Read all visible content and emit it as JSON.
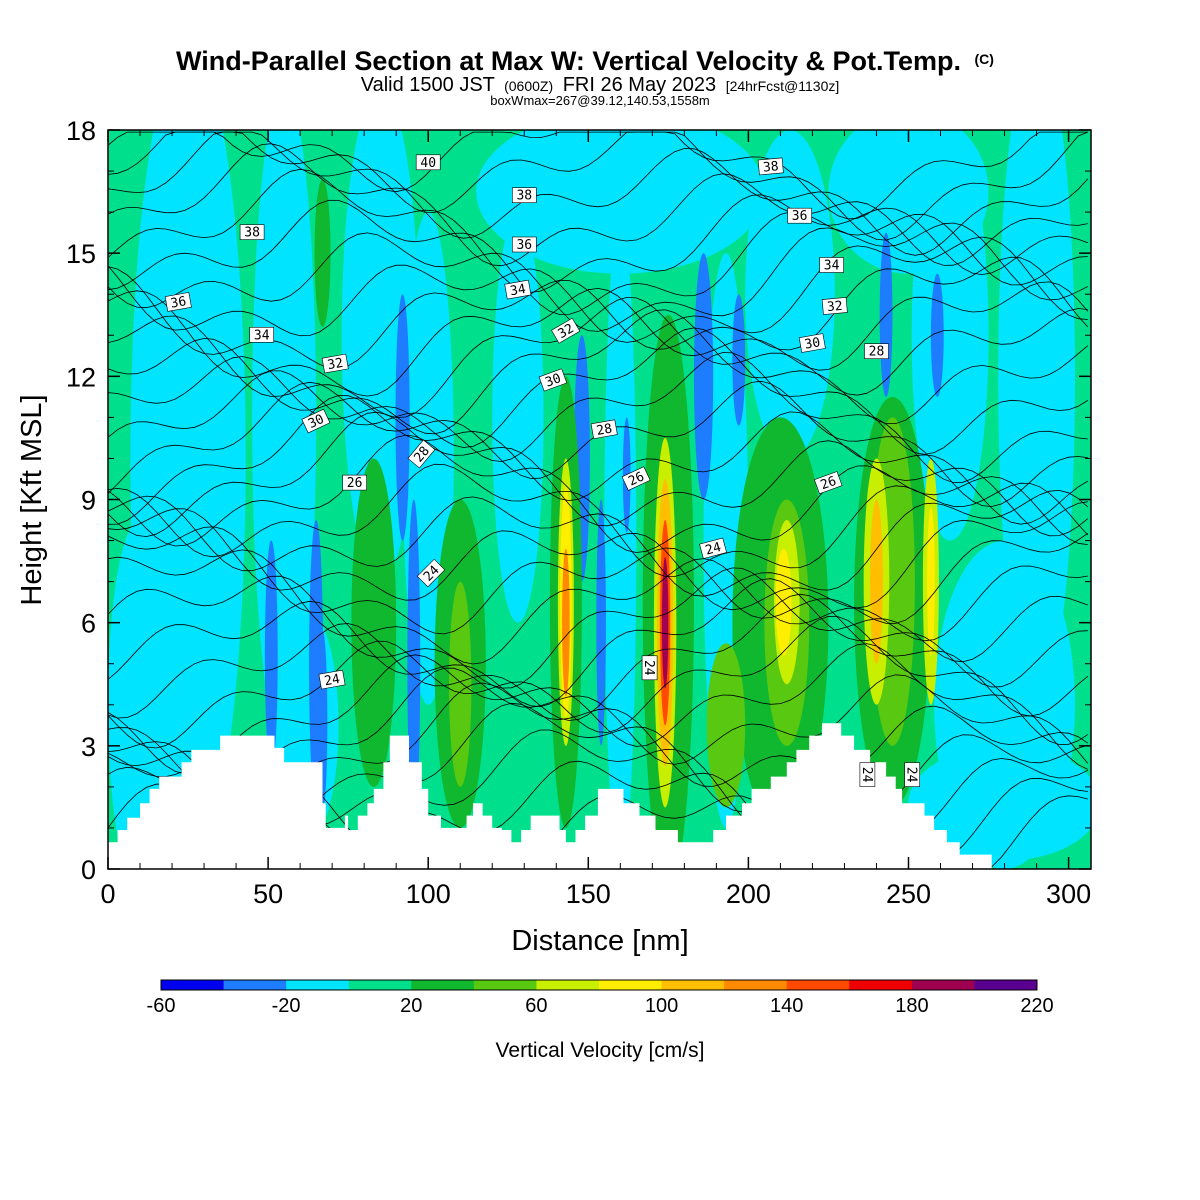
{
  "chart_data": {
    "type": "heatmap",
    "title": "Wind-Parallel Section at Max W: Vertical Velocity & Pot.Temp.",
    "title_mark": "(C)",
    "subtitle": {
      "main1": "Valid 1500 JST",
      "small1": "(0600Z)",
      "main2": "FRI 26 May 2023",
      "small2": "[24hrFcst@1130z]"
    },
    "subtitle2": "boxWmax=267@39.12,140.53,1558m",
    "xlabel": "Distance [nm]",
    "ylabel": "Height [Kft MSL]",
    "xlim": [
      0,
      307
    ],
    "ylim": [
      0,
      18
    ],
    "xticks": [
      0,
      50,
      100,
      150,
      200,
      250,
      300
    ],
    "yticks": [
      0,
      3,
      6,
      9,
      12,
      15,
      18
    ],
    "colorbar": {
      "title": "Vertical Velocity [cm/s]",
      "min": -60,
      "step": 20,
      "tick_labels": [
        "-60",
        "-20",
        "20",
        "60",
        "100",
        "140",
        "180",
        "220"
      ],
      "colors": [
        "#0000ee",
        "#1e7cff",
        "#00e4ff",
        "#00e08c",
        "#10b830",
        "#58c810",
        "#c8ee00",
        "#ffee00",
        "#ffbe00",
        "#ff8a00",
        "#ff4a00",
        "#ee0000",
        "#a00050",
        "#5a0090"
      ]
    },
    "background_color": "#00e08c",
    "terrain": [
      [
        0,
        0.65
      ],
      [
        3,
        0.65
      ],
      [
        3,
        0.95
      ],
      [
        6,
        0.95
      ],
      [
        6,
        1.25
      ],
      [
        10,
        1.25
      ],
      [
        10,
        1.6
      ],
      [
        13,
        1.6
      ],
      [
        13,
        1.95
      ],
      [
        16,
        1.95
      ],
      [
        16,
        2.25
      ],
      [
        23,
        2.25
      ],
      [
        23,
        2.6
      ],
      [
        26,
        2.6
      ],
      [
        26,
        2.9
      ],
      [
        35,
        2.9
      ],
      [
        35,
        3.25
      ],
      [
        52,
        3.25
      ],
      [
        52,
        2.95
      ],
      [
        55,
        2.95
      ],
      [
        55,
        2.6
      ],
      [
        67,
        2.6
      ],
      [
        67,
        1.6
      ],
      [
        68,
        1.6
      ],
      [
        68,
        1.0
      ],
      [
        74,
        1.0
      ],
      [
        74,
        1.3
      ],
      [
        75,
        1.3
      ],
      [
        75,
        0.95
      ],
      [
        78,
        0.95
      ],
      [
        78,
        1.3
      ],
      [
        81,
        1.3
      ],
      [
        81,
        1.6
      ],
      [
        83,
        1.6
      ],
      [
        83,
        1.95
      ],
      [
        86,
        1.95
      ],
      [
        86,
        2.6
      ],
      [
        88,
        2.6
      ],
      [
        88,
        3.25
      ],
      [
        94,
        3.25
      ],
      [
        94,
        2.6
      ],
      [
        98,
        2.6
      ],
      [
        98,
        1.95
      ],
      [
        100,
        1.95
      ],
      [
        100,
        1.3
      ],
      [
        104,
        1.3
      ],
      [
        104,
        1.0
      ],
      [
        112,
        1.0
      ],
      [
        112,
        1.3
      ],
      [
        114,
        1.3
      ],
      [
        114,
        1.6
      ],
      [
        117,
        1.6
      ],
      [
        117,
        1.3
      ],
      [
        120,
        1.3
      ],
      [
        120,
        1.0
      ],
      [
        123,
        1.0
      ],
      [
        123,
        0.95
      ],
      [
        126,
        0.95
      ],
      [
        126,
        0.65
      ],
      [
        129,
        0.65
      ],
      [
        129,
        0.95
      ],
      [
        132,
        0.95
      ],
      [
        132,
        1.3
      ],
      [
        141,
        1.3
      ],
      [
        141,
        0.95
      ],
      [
        143,
        0.95
      ],
      [
        143,
        0.65
      ],
      [
        146,
        0.65
      ],
      [
        146,
        0.95
      ],
      [
        149,
        0.95
      ],
      [
        149,
        1.3
      ],
      [
        153,
        1.3
      ],
      [
        153,
        1.95
      ],
      [
        161,
        1.95
      ],
      [
        161,
        1.6
      ],
      [
        166,
        1.6
      ],
      [
        166,
        1.3
      ],
      [
        171,
        1.3
      ],
      [
        171,
        0.95
      ],
      [
        178,
        0.95
      ],
      [
        178,
        0.65
      ],
      [
        189,
        0.65
      ],
      [
        189,
        0.95
      ],
      [
        193,
        0.95
      ],
      [
        193,
        1.3
      ],
      [
        198,
        1.3
      ],
      [
        198,
        1.6
      ],
      [
        201,
        1.6
      ],
      [
        201,
        1.95
      ],
      [
        207,
        1.95
      ],
      [
        207,
        2.25
      ],
      [
        212,
        2.25
      ],
      [
        212,
        2.6
      ],
      [
        215,
        2.6
      ],
      [
        215,
        2.9
      ],
      [
        219,
        2.9
      ],
      [
        219,
        3.25
      ],
      [
        223,
        3.25
      ],
      [
        223,
        3.55
      ],
      [
        229,
        3.55
      ],
      [
        229,
        3.25
      ],
      [
        233,
        3.25
      ],
      [
        233,
        2.9
      ],
      [
        238,
        2.9
      ],
      [
        238,
        2.6
      ],
      [
        243,
        2.6
      ],
      [
        243,
        2.25
      ],
      [
        246,
        2.25
      ],
      [
        246,
        1.95
      ],
      [
        248,
        1.95
      ],
      [
        248,
        1.6
      ],
      [
        255,
        1.6
      ],
      [
        255,
        1.3
      ],
      [
        258,
        1.3
      ],
      [
        258,
        0.95
      ],
      [
        262,
        0.95
      ],
      [
        262,
        0.65
      ],
      [
        266,
        0.65
      ],
      [
        266,
        0.35
      ],
      [
        276,
        0.35
      ],
      [
        276,
        0.0
      ],
      [
        307,
        0.0
      ]
    ],
    "velocity_features": [
      {
        "w": -5,
        "cx": 25,
        "cy": 10,
        "rx": 18,
        "ry": 10
      },
      {
        "w": -5,
        "cx": 10,
        "cy": 4,
        "rx": 10,
        "ry": 4.5
      },
      {
        "w": -5,
        "cx": 55,
        "cy": 11,
        "rx": 10,
        "ry": 8
      },
      {
        "w": -5,
        "cx": 62,
        "cy": 3.5,
        "rx": 10,
        "ry": 2.8
      },
      {
        "w": -5,
        "cx": 85,
        "cy": 13,
        "rx": 12,
        "ry": 6
      },
      {
        "w": -5,
        "cx": 100,
        "cy": 10,
        "rx": 8,
        "ry": 6
      },
      {
        "w": -5,
        "cx": 128,
        "cy": 11,
        "rx": 8,
        "ry": 5
      },
      {
        "w": -5,
        "cx": 160,
        "cy": 8,
        "rx": 5,
        "ry": 8
      },
      {
        "w": -5,
        "cx": 193,
        "cy": 8,
        "rx": 7,
        "ry": 7
      },
      {
        "w": -5,
        "cx": 213,
        "cy": 14,
        "rx": 14,
        "ry": 4
      },
      {
        "w": -5,
        "cx": 263,
        "cy": 13,
        "rx": 12,
        "ry": 5
      },
      {
        "w": -5,
        "cx": 280,
        "cy": 4,
        "rx": 22,
        "ry": 4
      },
      {
        "w": -5,
        "cx": 290,
        "cy": 12,
        "rx": 12,
        "ry": 8
      },
      {
        "w": -5,
        "cx": 160,
        "cy": 16.5,
        "rx": 45,
        "ry": 2
      },
      {
        "w": -5,
        "cx": 250,
        "cy": 16.5,
        "rx": 25,
        "ry": 2
      },
      {
        "w": -5,
        "cx": 280,
        "cy": 1.6,
        "rx": 30,
        "ry": 1.4
      },
      {
        "w": -25,
        "cx": 92,
        "cy": 11,
        "rx": 2.2,
        "ry": 3
      },
      {
        "w": -25,
        "cx": 95.5,
        "cy": 5,
        "rx": 2,
        "ry": 4
      },
      {
        "w": -35,
        "cx": 95.5,
        "cy": 4,
        "rx": 1.1,
        "ry": 2.2
      },
      {
        "w": -25,
        "cx": 65,
        "cy": 5,
        "rx": 2.2,
        "ry": 3.5
      },
      {
        "w": -40,
        "cx": 67,
        "cy": 3.6,
        "rx": 1.5,
        "ry": 2.2
      },
      {
        "w": -25,
        "cx": 51,
        "cy": 5.2,
        "rx": 2,
        "ry": 2.8
      },
      {
        "w": -25,
        "cx": 148,
        "cy": 10,
        "rx": 2.5,
        "ry": 3
      },
      {
        "w": -25,
        "cx": 154,
        "cy": 6,
        "rx": 1.5,
        "ry": 3
      },
      {
        "w": -25,
        "cx": 162,
        "cy": 9.6,
        "rx": 1.2,
        "ry": 1.4
      },
      {
        "w": -25,
        "cx": 186,
        "cy": 12,
        "rx": 3,
        "ry": 3
      },
      {
        "w": -25,
        "cx": 197,
        "cy": 12.4,
        "rx": 2,
        "ry": 1.6
      },
      {
        "w": -25,
        "cx": 243,
        "cy": 13.5,
        "rx": 2,
        "ry": 2
      },
      {
        "w": -25,
        "cx": 259,
        "cy": 13,
        "rx": 2,
        "ry": 1.5
      },
      {
        "w": 25,
        "cx": 67,
        "cy": 15,
        "rx": 2.5,
        "ry": 1.8
      },
      {
        "w": 25,
        "cx": 83,
        "cy": 6,
        "rx": 7,
        "ry": 4
      },
      {
        "w": 25,
        "cx": 110,
        "cy": 5,
        "rx": 8,
        "ry": 4
      },
      {
        "w": 25,
        "cx": 143,
        "cy": 6.5,
        "rx": 5,
        "ry": 5.5
      },
      {
        "w": 25,
        "cx": 175,
        "cy": 6.5,
        "rx": 8,
        "ry": 7
      },
      {
        "w": 25,
        "cx": 210,
        "cy": 6,
        "rx": 15,
        "ry": 5
      },
      {
        "w": 25,
        "cx": 245,
        "cy": 6.5,
        "rx": 12,
        "ry": 5
      },
      {
        "w": 50,
        "cx": 110,
        "cy": 4.5,
        "rx": 3.5,
        "ry": 2.5
      },
      {
        "w": 50,
        "cx": 212,
        "cy": 6,
        "rx": 7,
        "ry": 3
      },
      {
        "w": 50,
        "cx": 245,
        "cy": 7,
        "rx": 7,
        "ry": 4
      },
      {
        "w": 50,
        "cx": 193,
        "cy": 3.5,
        "rx": 6,
        "ry": 2
      },
      {
        "w": 70,
        "cx": 143,
        "cy": 6.5,
        "rx": 2.5,
        "ry": 3.5
      },
      {
        "w": 90,
        "cx": 143,
        "cy": 6.5,
        "rx": 1.8,
        "ry": 2.8
      },
      {
        "w": 130,
        "cx": 143,
        "cy": 6,
        "rx": 1.2,
        "ry": 1.8
      },
      {
        "w": 70,
        "cx": 174,
        "cy": 6,
        "rx": 3.5,
        "ry": 4.5
      },
      {
        "w": 110,
        "cx": 174,
        "cy": 6,
        "rx": 2.5,
        "ry": 3.5
      },
      {
        "w": 150,
        "cx": 174,
        "cy": 6,
        "rx": 1.6,
        "ry": 2.5
      },
      {
        "w": 190,
        "cx": 174,
        "cy": 6,
        "rx": 1,
        "ry": 1.6
      },
      {
        "w": 70,
        "cx": 212,
        "cy": 6.5,
        "rx": 4,
        "ry": 2
      },
      {
        "w": 90,
        "cx": 211,
        "cy": 6.5,
        "rx": 2.5,
        "ry": 1.3
      },
      {
        "w": 70,
        "cx": 240,
        "cy": 7,
        "rx": 4,
        "ry": 3
      },
      {
        "w": 100,
        "cx": 240,
        "cy": 7,
        "rx": 2,
        "ry": 2
      },
      {
        "w": 70,
        "cx": 257,
        "cy": 7,
        "rx": 2.5,
        "ry": 3
      },
      {
        "w": 90,
        "cx": 257,
        "cy": 7,
        "rx": 1.2,
        "ry": 1.8
      }
    ],
    "theta_contour_labels": [
      {
        "text": "40",
        "x": 100,
        "y": 17.2,
        "rot": 0
      },
      {
        "text": "38",
        "x": 130,
        "y": 16.4,
        "rot": 0
      },
      {
        "text": "36",
        "x": 130,
        "y": 15.2,
        "rot": 0
      },
      {
        "text": "34",
        "x": 128,
        "y": 14.1,
        "rot": -10
      },
      {
        "text": "32",
        "x": 143,
        "y": 13.1,
        "rot": -30
      },
      {
        "text": "30",
        "x": 139,
        "y": 11.9,
        "rot": -20
      },
      {
        "text": "28",
        "x": 155,
        "y": 10.7,
        "rot": -10
      },
      {
        "text": "26",
        "x": 165,
        "y": 9.5,
        "rot": -25
      },
      {
        "text": "24",
        "x": 189,
        "y": 7.8,
        "rot": -15
      },
      {
        "text": "24",
        "x": 169,
        "y": 4.9,
        "rot": 90
      },
      {
        "text": "38",
        "x": 45,
        "y": 15.5,
        "rot": 0
      },
      {
        "text": "36",
        "x": 22,
        "y": 13.8,
        "rot": -10
      },
      {
        "text": "34",
        "x": 48,
        "y": 13,
        "rot": 0
      },
      {
        "text": "32",
        "x": 71,
        "y": 12.3,
        "rot": -10
      },
      {
        "text": "30",
        "x": 65,
        "y": 10.9,
        "rot": -25
      },
      {
        "text": "28",
        "x": 98,
        "y": 10.1,
        "rot": -50
      },
      {
        "text": "26",
        "x": 77,
        "y": 9.4,
        "rot": 0
      },
      {
        "text": "24",
        "x": 101,
        "y": 7.2,
        "rot": -45
      },
      {
        "text": "24",
        "x": 70,
        "y": 4.6,
        "rot": -10
      },
      {
        "text": "38",
        "x": 207,
        "y": 17.1,
        "rot": -5
      },
      {
        "text": "36",
        "x": 216,
        "y": 15.9,
        "rot": 0
      },
      {
        "text": "34",
        "x": 226,
        "y": 14.7,
        "rot": 0
      },
      {
        "text": "32",
        "x": 227,
        "y": 13.7,
        "rot": -5
      },
      {
        "text": "30",
        "x": 220,
        "y": 12.8,
        "rot": -10
      },
      {
        "text": "28",
        "x": 240,
        "y": 12.6,
        "rot": 0
      },
      {
        "text": "26",
        "x": 225,
        "y": 9.4,
        "rot": -20
      },
      {
        "text": "24",
        "x": 237,
        "y": 2.3,
        "rot": 90
      },
      {
        "text": "24",
        "x": 251,
        "y": 2.3,
        "rot": 90
      }
    ]
  }
}
